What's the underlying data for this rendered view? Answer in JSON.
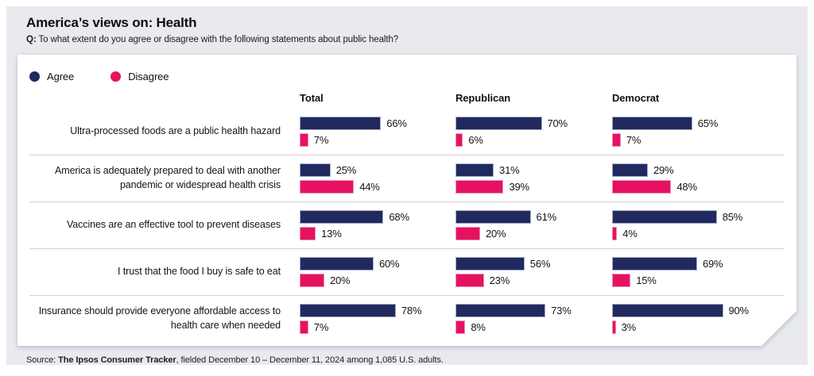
{
  "header": {
    "title": "America’s views on: Health",
    "q_label": "Q:",
    "question": "To what extent do you agree or disagree with the following statements about public health?"
  },
  "legend": {
    "agree": "Agree",
    "disagree": "Disagree"
  },
  "chart_data": {
    "type": "bar",
    "orientation": "horizontal",
    "value_unit": "%",
    "xlim": [
      0,
      100
    ],
    "legend_position": "top-left",
    "grid": false,
    "groups": [
      "Total",
      "Republican",
      "Democrat"
    ],
    "series_names": [
      "Agree",
      "Disagree"
    ],
    "rows": [
      {
        "label": "Ultra-processed foods are a public health hazard",
        "agree": [
          66,
          70,
          65
        ],
        "disagree": [
          7,
          6,
          7
        ]
      },
      {
        "label": "America is adequately prepared to deal with another pandemic or widespread health crisis",
        "agree": [
          25,
          31,
          29
        ],
        "disagree": [
          44,
          39,
          48
        ]
      },
      {
        "label": "Vaccines are an effective tool to prevent diseases",
        "agree": [
          68,
          61,
          85
        ],
        "disagree": [
          13,
          20,
          4
        ]
      },
      {
        "label": "I trust that the food I buy is safe to eat",
        "agree": [
          60,
          56,
          69
        ],
        "disagree": [
          20,
          23,
          15
        ]
      },
      {
        "label": "Insurance should provide everyone affordable access to health care when needed",
        "agree": [
          78,
          73,
          90
        ],
        "disagree": [
          7,
          8,
          3
        ]
      }
    ]
  },
  "source": {
    "label": "Source: ",
    "tracker": "The Ipsos Consumer Tracker",
    "rest": ", fielded December 10 – December 11, 2024 among 1,085 U.S. adults."
  },
  "colors": {
    "agree_navy": "#212a5e",
    "disagree_pink": "#e51261",
    "panel_bg": "#e8eaee",
    "card_bg": "#ffffff"
  }
}
